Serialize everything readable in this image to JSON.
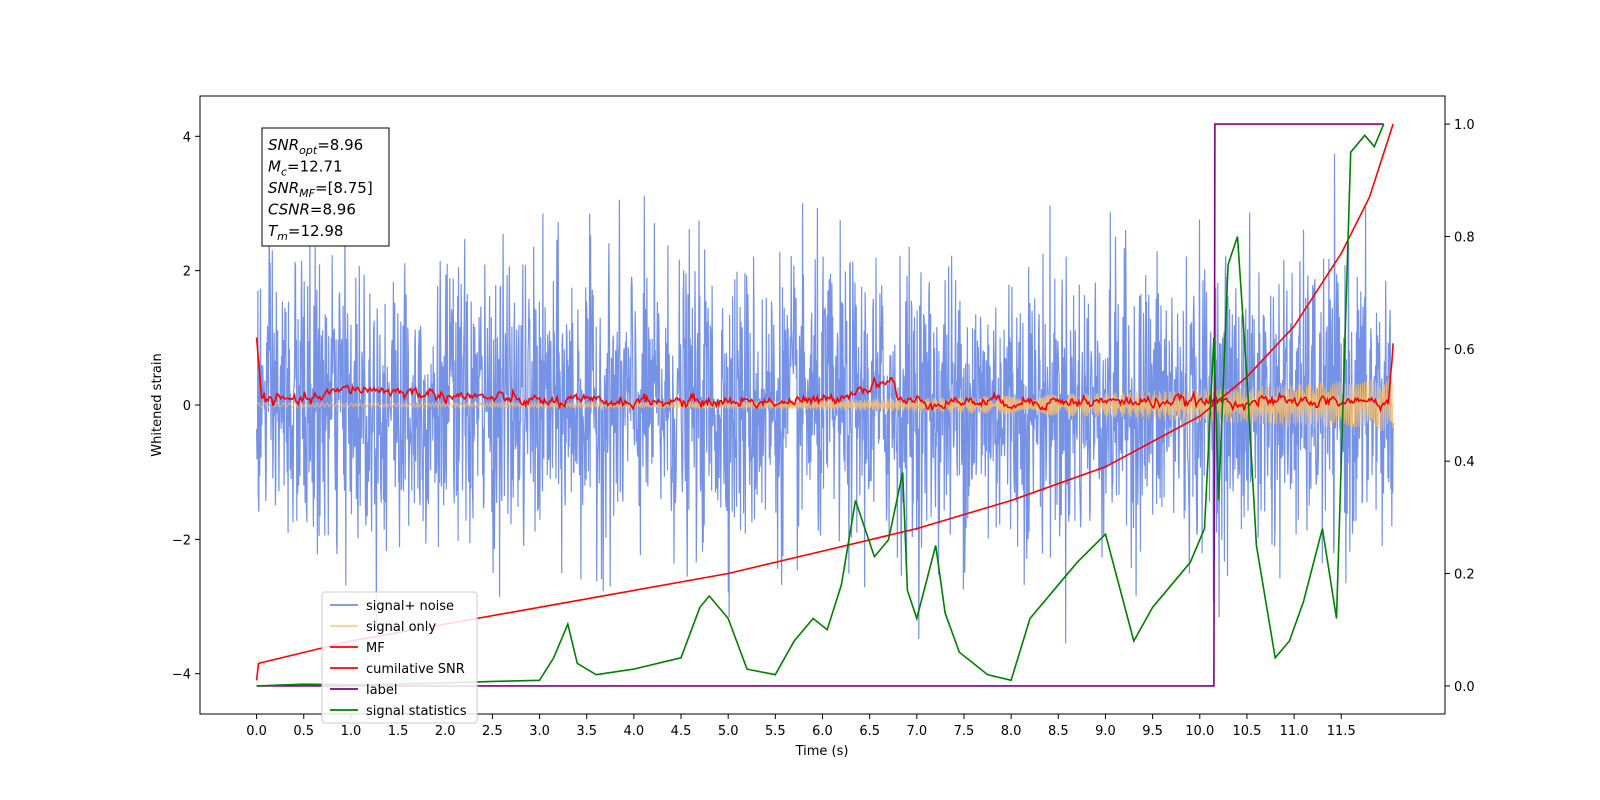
{
  "chart_data": {
    "type": "line",
    "xlabel": "Time (s)",
    "ylabel": "Whitened strain",
    "xlim": [
      -0.6,
      12.6
    ],
    "ylim_left": [
      -4.6,
      4.6
    ],
    "ylim_right": [
      -0.05,
      1.05
    ],
    "x_ticks": [
      "0.0",
      "0.5",
      "1.0",
      "1.5",
      "2.0",
      "2.5",
      "3.0",
      "3.5",
      "4.0",
      "4.5",
      "5.0",
      "5.5",
      "6.0",
      "6.5",
      "7.0",
      "7.5",
      "8.0",
      "8.5",
      "9.0",
      "9.5",
      "10.0",
      "10.5",
      "11.0",
      "11.5"
    ],
    "y_ticks_left": [
      "4",
      "2",
      "0",
      "−2",
      "−4"
    ],
    "y_ticks_right": [
      "1.0",
      "0.8",
      "0.6",
      "0.4",
      "0.2",
      "0.0"
    ],
    "legend_position": "lower-left",
    "annotation": [
      {
        "sym": "SNR",
        "sub": "opt",
        "value": "=8.96"
      },
      {
        "sym": "M",
        "sub": "c",
        "value": "=12.71"
      },
      {
        "sym": "SNR",
        "sub": "MF",
        "value": "=[8.75]"
      },
      {
        "sym": "CSNR",
        "sub": "",
        "value": "=8.96"
      },
      {
        "sym": "T",
        "sub": "m",
        "value": "=12.98"
      }
    ],
    "series": [
      {
        "name": "signal+ noise",
        "color": "#6f8ce6",
        "axis": "left",
        "description": "whitened noisy strain, roughly between -4 and 4.15"
      },
      {
        "name": "signal only",
        "color": "#f5c06e",
        "axis": "left",
        "description": "chirp amplitude growing from ~0.03 to ~0.4 at end"
      },
      {
        "name": "MF",
        "color": "#ff0000",
        "axis": "left",
        "x": [
          0.0,
          0.05,
          0.5,
          1.0,
          3.0,
          6.0,
          6.75,
          6.8,
          9.0,
          12.0,
          12.05
        ],
        "y": [
          1.0,
          0.1,
          0.05,
          0.25,
          0.05,
          0.05,
          0.4,
          0.05,
          0.05,
          0.05,
          0.9
        ]
      },
      {
        "name": "cumilative SNR",
        "color": "#ff0000",
        "axis": "right",
        "x": [
          0.0,
          0.02,
          1.0,
          2.0,
          3.0,
          4.0,
          5.0,
          6.0,
          7.0,
          8.0,
          9.0,
          10.0,
          10.5,
          11.0,
          11.5,
          11.8,
          12.05
        ],
        "y": [
          0.01,
          0.04,
          0.08,
          0.11,
          0.14,
          0.17,
          0.2,
          0.24,
          0.28,
          0.33,
          0.39,
          0.48,
          0.55,
          0.64,
          0.77,
          0.87,
          1.0
        ]
      },
      {
        "name": "label",
        "color": "#800080",
        "axis": "right",
        "x": [
          0.0,
          10.15,
          10.16,
          11.95
        ],
        "y": [
          0.0,
          0.0,
          1.0,
          1.0
        ]
      },
      {
        "name": "signal statistics",
        "color": "#008000",
        "axis": "right",
        "x": [
          0.0,
          0.5,
          1.0,
          2.0,
          2.5,
          3.0,
          3.15,
          3.3,
          3.4,
          3.6,
          4.0,
          4.5,
          4.7,
          4.8,
          5.0,
          5.2,
          5.5,
          5.7,
          5.9,
          6.05,
          6.2,
          6.35,
          6.55,
          6.7,
          6.85,
          6.9,
          7.0,
          7.2,
          7.3,
          7.45,
          7.6,
          7.75,
          8.0,
          8.2,
          8.5,
          8.7,
          9.0,
          9.3,
          9.5,
          9.7,
          9.9,
          10.05,
          10.15,
          10.2,
          10.3,
          10.4,
          10.5,
          10.6,
          10.8,
          10.95,
          11.1,
          11.3,
          11.45,
          11.6,
          11.75,
          11.85,
          11.95
        ],
        "y": [
          0.0,
          0.003,
          0.002,
          0.005,
          0.008,
          0.01,
          0.05,
          0.11,
          0.04,
          0.02,
          0.03,
          0.05,
          0.14,
          0.16,
          0.12,
          0.03,
          0.02,
          0.08,
          0.12,
          0.1,
          0.18,
          0.33,
          0.23,
          0.26,
          0.38,
          0.17,
          0.12,
          0.25,
          0.13,
          0.06,
          0.04,
          0.02,
          0.01,
          0.12,
          0.18,
          0.22,
          0.27,
          0.08,
          0.14,
          0.18,
          0.22,
          0.28,
          0.62,
          0.33,
          0.75,
          0.8,
          0.55,
          0.25,
          0.05,
          0.08,
          0.15,
          0.28,
          0.12,
          0.95,
          0.98,
          0.96,
          1.0
        ]
      }
    ]
  }
}
